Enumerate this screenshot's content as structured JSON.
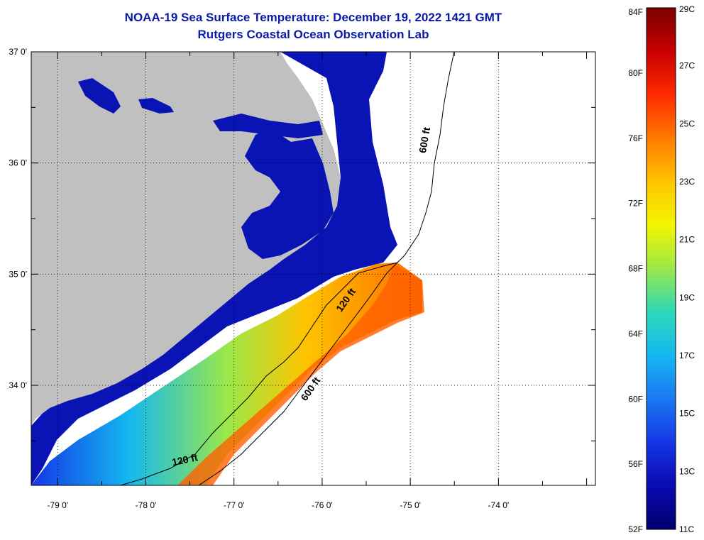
{
  "title_line1": "NOAA-19 Sea Surface Temperature:  December 19, 2022 1421 GMT",
  "title_line2": "Rutgers Coastal Ocean Observation Lab",
  "lon_ticks": [
    {
      "value": -79,
      "label": "-79 0'"
    },
    {
      "value": -78,
      "label": "-78 0'"
    },
    {
      "value": -77,
      "label": "-77 0'"
    },
    {
      "value": -76,
      "label": "-76 0'"
    },
    {
      "value": -75,
      "label": "-75 0'"
    },
    {
      "value": -74,
      "label": "-74 0'"
    }
  ],
  "lat_ticks": [
    {
      "value": 37,
      "label": "37 0'"
    },
    {
      "value": 36,
      "label": "36 0'"
    },
    {
      "value": 35,
      "label": "35 0'"
    },
    {
      "value": 34,
      "label": "34 0'"
    }
  ],
  "extent": {
    "lon_min": -79.3,
    "lon_max": -72.9,
    "lat_min": 33.1,
    "lat_max": 37.0
  },
  "contours": [
    {
      "label": "600 ft",
      "label_lon": -74.8,
      "label_lat": 36.2,
      "rotate": -80
    },
    {
      "label": "120 ft",
      "label_lon": -75.7,
      "label_lat": 34.75,
      "rotate": -55
    },
    {
      "label": "600 ft",
      "label_lon": -76.1,
      "label_lat": 33.95,
      "rotate": -55
    },
    {
      "label": "120 ft",
      "label_lon": -77.55,
      "label_lat": 33.3,
      "rotate": -12
    }
  ],
  "colorbar": {
    "fahrenheit": [
      "84F",
      "80F",
      "76F",
      "72F",
      "68F",
      "64F",
      "60F",
      "56F",
      "52F"
    ],
    "celsius": [
      "29C",
      "27C",
      "25C",
      "23C",
      "21C",
      "19C",
      "17C",
      "15C",
      "13C",
      "11C"
    ],
    "colors": [
      "#7a0000",
      "#c80000",
      "#ff2a00",
      "#ff7a00",
      "#ffc400",
      "#f4f400",
      "#9ae84a",
      "#2cd8b8",
      "#14b8f0",
      "#1a78f0",
      "#1436e8",
      "#0a0ab0",
      "#00006e"
    ]
  },
  "colors": {
    "land": "#c0c0c0",
    "title": "#0a1aa6",
    "nearshore": "#0a14b4"
  }
}
